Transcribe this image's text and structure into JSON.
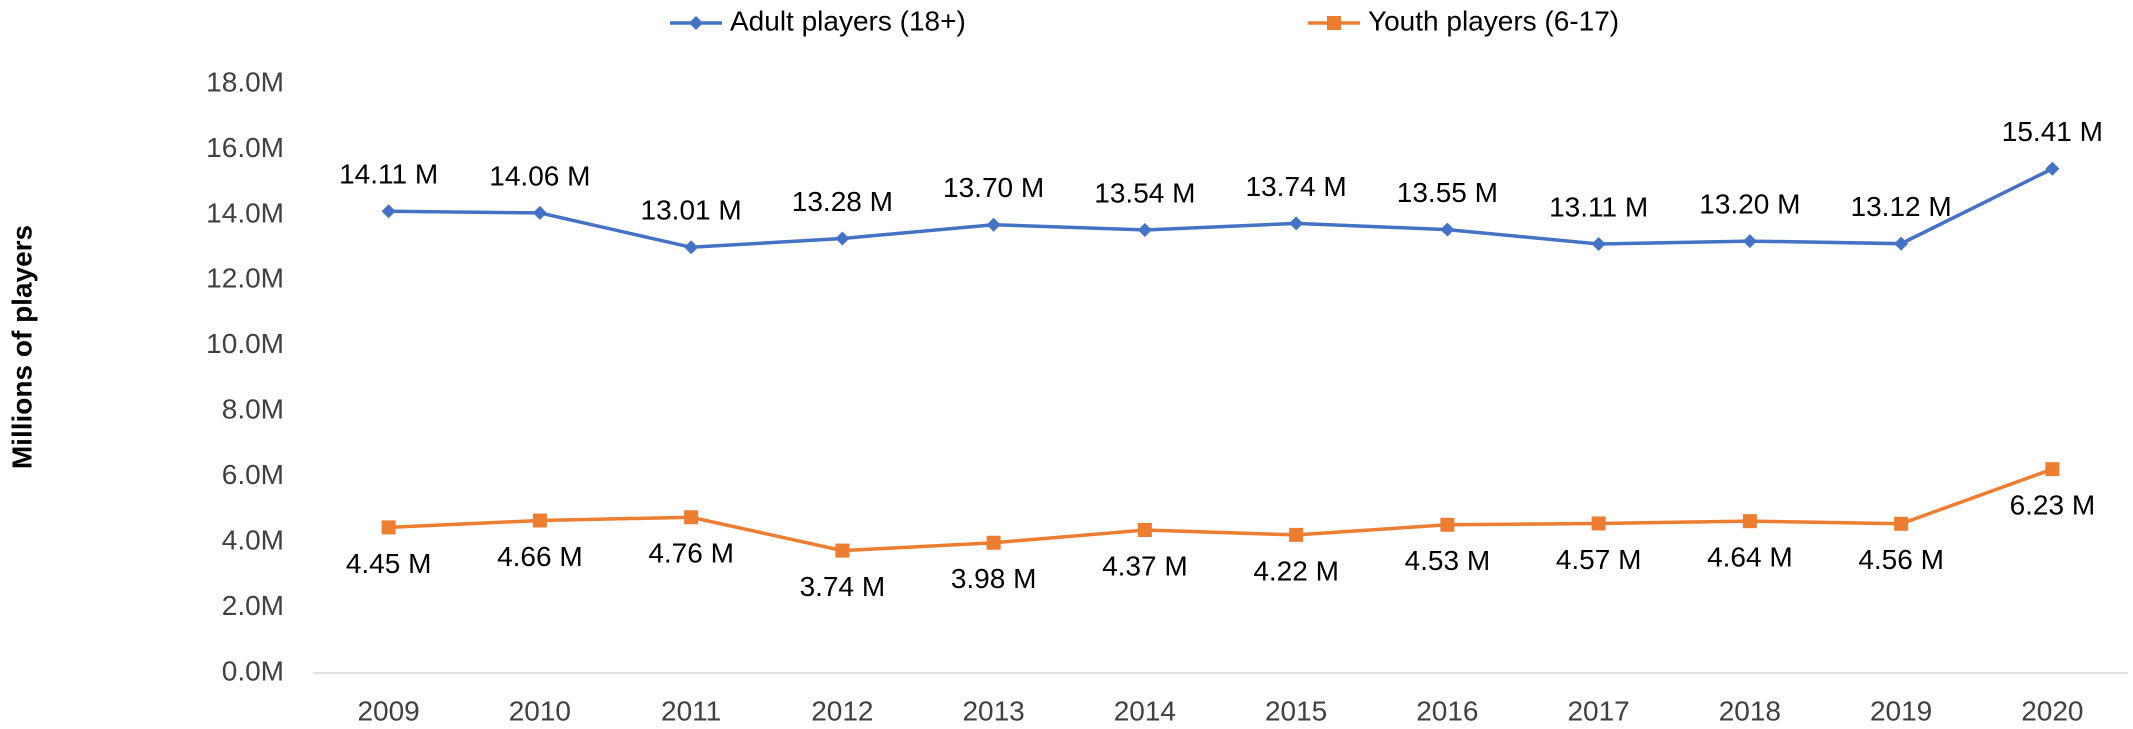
{
  "chart_data": {
    "type": "line",
    "y_label": "Millions of players",
    "categories": [
      "2009",
      "2010",
      "2011",
      "2012",
      "2013",
      "2014",
      "2015",
      "2016",
      "2017",
      "2018",
      "2019",
      "2020"
    ],
    "series": [
      {
        "name": "Adult players (18+)",
        "color": "#4472c4",
        "marker": "diamond",
        "values": [
          14.11,
          14.06,
          13.01,
          13.28,
          13.7,
          13.54,
          13.74,
          13.55,
          13.11,
          13.2,
          13.12,
          15.41
        ],
        "value_labels": [
          "14.11 M",
          "14.06 M",
          "13.01 M",
          "13.28 M",
          "13.70 M",
          "13.54 M",
          "13.74 M",
          "13.55 M",
          "13.11 M",
          "13.20 M",
          "13.12 M",
          "15.41 M"
        ],
        "label_position": "above"
      },
      {
        "name": "Youth players (6-17)",
        "color": "#ed7d31",
        "marker": "square",
        "values": [
          4.45,
          4.66,
          4.76,
          3.74,
          3.98,
          4.37,
          4.22,
          4.53,
          4.57,
          4.64,
          4.56,
          6.23
        ],
        "value_labels": [
          "4.45 M",
          "4.66 M",
          "4.76 M",
          "3.74 M",
          "3.98 M",
          "4.37 M",
          "4.22 M",
          "4.53 M",
          "4.57 M",
          "4.64 M",
          "4.56 M",
          "6.23 M"
        ],
        "label_position": "below"
      }
    ],
    "ylim": [
      0,
      18
    ],
    "yticks": [
      {
        "value": 0,
        "label": "0.0M"
      },
      {
        "value": 2,
        "label": "2.0M"
      },
      {
        "value": 4,
        "label": "4.0M"
      },
      {
        "value": 6,
        "label": "6.0M"
      },
      {
        "value": 8,
        "label": "8.0M"
      },
      {
        "value": 10,
        "label": "10.0M"
      },
      {
        "value": 12,
        "label": "12.0M"
      },
      {
        "value": 14,
        "label": "14.0M"
      },
      {
        "value": 16,
        "label": "16.0M"
      },
      {
        "value": 18,
        "label": "18.0M"
      }
    ],
    "grid": false,
    "legend": "top"
  }
}
